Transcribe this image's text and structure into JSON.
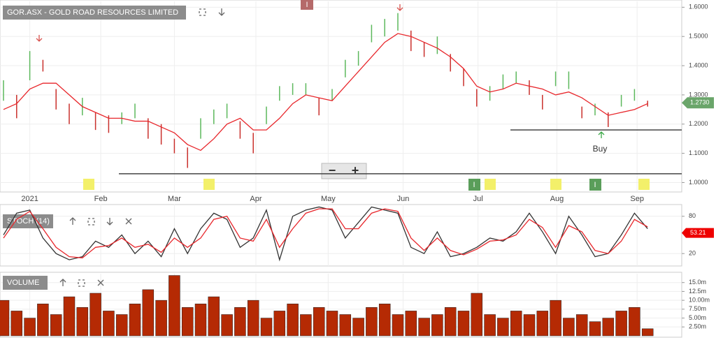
{
  "chart_data": [
    {
      "type": "ohlc",
      "title": "GOR.ASX - GOLD ROAD RESOURCES LIMITED",
      "high": [
        1.35,
        1.3,
        1.45,
        1.42,
        1.32,
        1.27,
        1.29,
        1.24,
        1.23,
        1.24,
        1.27,
        1.22,
        1.2,
        1.15,
        1.12,
        1.22,
        1.25,
        1.27,
        1.21,
        1.17,
        1.26,
        1.33,
        1.34,
        1.34,
        1.29,
        1.32,
        1.42,
        1.45,
        1.54,
        1.56,
        1.58,
        1.52,
        1.48,
        1.5,
        1.44,
        1.39,
        1.32,
        1.33,
        1.37,
        1.38,
        1.35,
        1.3,
        1.38,
        1.38,
        1.26,
        1.27,
        1.24,
        1.3,
        1.32,
        1.28
      ],
      "low": [
        1.28,
        1.22,
        1.35,
        1.38,
        1.25,
        1.2,
        1.23,
        1.18,
        1.17,
        1.2,
        1.22,
        1.15,
        1.13,
        1.1,
        1.05,
        1.15,
        1.2,
        1.22,
        1.15,
        1.1,
        1.2,
        1.28,
        1.3,
        1.3,
        1.23,
        1.28,
        1.36,
        1.4,
        1.48,
        1.5,
        1.52,
        1.45,
        1.43,
        1.44,
        1.38,
        1.33,
        1.26,
        1.28,
        1.32,
        1.34,
        1.3,
        1.25,
        1.33,
        1.32,
        1.22,
        1.23,
        1.19,
        1.26,
        1.28,
        1.26
      ],
      "ma": [
        1.25,
        1.27,
        1.32,
        1.34,
        1.34,
        1.3,
        1.26,
        1.24,
        1.22,
        1.22,
        1.21,
        1.21,
        1.19,
        1.17,
        1.13,
        1.11,
        1.15,
        1.2,
        1.22,
        1.18,
        1.18,
        1.22,
        1.27,
        1.3,
        1.29,
        1.28,
        1.33,
        1.38,
        1.43,
        1.48,
        1.51,
        1.5,
        1.48,
        1.46,
        1.43,
        1.39,
        1.33,
        1.31,
        1.32,
        1.34,
        1.33,
        1.32,
        1.3,
        1.31,
        1.29,
        1.26,
        1.23,
        1.24,
        1.25,
        1.27
      ],
      "up_color": "#5cb85c",
      "down_color": "#c9302c",
      "ma_color": "#e8262b",
      "ylim": [
        0.97,
        1.62
      ],
      "yticks": [
        {
          "value": 1.0,
          "label": "1.0000"
        },
        {
          "value": 1.1,
          "label": "1.1000"
        },
        {
          "value": 1.2,
          "label": "1.2000"
        },
        {
          "value": 1.3,
          "label": "1.3000"
        },
        {
          "value": 1.4,
          "label": "1.4000"
        },
        {
          "value": 1.5,
          "label": "1.5000"
        },
        {
          "value": 1.6,
          "label": "1.6000"
        }
      ],
      "xticks": [
        {
          "value": 2,
          "label": "2021"
        },
        {
          "value": 7.4,
          "label": "Feb"
        },
        {
          "value": 13,
          "label": "Mar"
        },
        {
          "value": 19.2,
          "label": "Apr"
        },
        {
          "value": 24.7,
          "label": "May"
        },
        {
          "value": 30.4,
          "label": "Jun"
        },
        {
          "value": 36.1,
          "label": "Jul"
        },
        {
          "value": 42.1,
          "label": "Aug"
        },
        {
          "value": 48.2,
          "label": "Sep"
        }
      ],
      "last": {
        "value": 1.273,
        "label": "1.2730"
      },
      "support_lines": [
        1.18,
        1.03
      ],
      "annotation": "Buy",
      "marker": "I"
    },
    {
      "type": "line",
      "title": "STOCH (14)",
      "series": [
        {
          "color": "#333333",
          "values": [
            50,
            85,
            90,
            45,
            20,
            10,
            15,
            40,
            30,
            50,
            20,
            40,
            15,
            60,
            20,
            60,
            85,
            75,
            30,
            45,
            90,
            10,
            80,
            90,
            95,
            90,
            45,
            70,
            95,
            90,
            85,
            30,
            20,
            55,
            15,
            20,
            30,
            45,
            40,
            55,
            85,
            55,
            20,
            80,
            50,
            15,
            20,
            50,
            85,
            60
          ]
        },
        {
          "color": "#e8262b",
          "values": [
            45,
            75,
            88,
            60,
            30,
            15,
            13,
            30,
            33,
            45,
            30,
            35,
            22,
            45,
            30,
            45,
            75,
            80,
            45,
            40,
            75,
            30,
            60,
            85,
            92,
            92,
            60,
            60,
            85,
            92,
            88,
            45,
            25,
            45,
            25,
            18,
            27,
            40,
            42,
            50,
            75,
            62,
            30,
            65,
            55,
            25,
            20,
            40,
            75,
            63
          ]
        }
      ],
      "ylim": [
        0,
        100
      ],
      "yticks": [
        20,
        80
      ],
      "last": {
        "value": 53.21,
        "label": "53.21"
      }
    },
    {
      "type": "bar",
      "title": "VOLUME",
      "color": "#b52a04",
      "values": [
        10,
        7,
        5,
        9,
        6,
        11,
        8,
        12,
        7,
        6,
        9,
        13,
        10,
        17,
        8,
        9,
        11,
        6,
        8,
        10,
        5,
        7,
        9,
        6,
        8,
        7,
        6,
        5,
        8,
        9,
        6,
        7,
        5,
        6,
        8,
        7,
        12,
        6,
        5,
        7,
        6,
        7,
        10,
        5,
        6,
        4,
        5,
        7,
        8,
        2
      ],
      "ylim": [
        0,
        17.5
      ],
      "yticks": [
        {
          "value": 2.5,
          "label": "2.50m"
        },
        {
          "value": 5,
          "label": "5.00m"
        },
        {
          "value": 7.5,
          "label": "7.50m"
        },
        {
          "value": 10,
          "label": "10.00m"
        },
        {
          "value": 12.5,
          "label": "12.5m"
        },
        {
          "value": 15,
          "label": "15.0m"
        }
      ]
    }
  ],
  "controls": {
    "zoom_out": "−",
    "zoom_in": "+"
  }
}
